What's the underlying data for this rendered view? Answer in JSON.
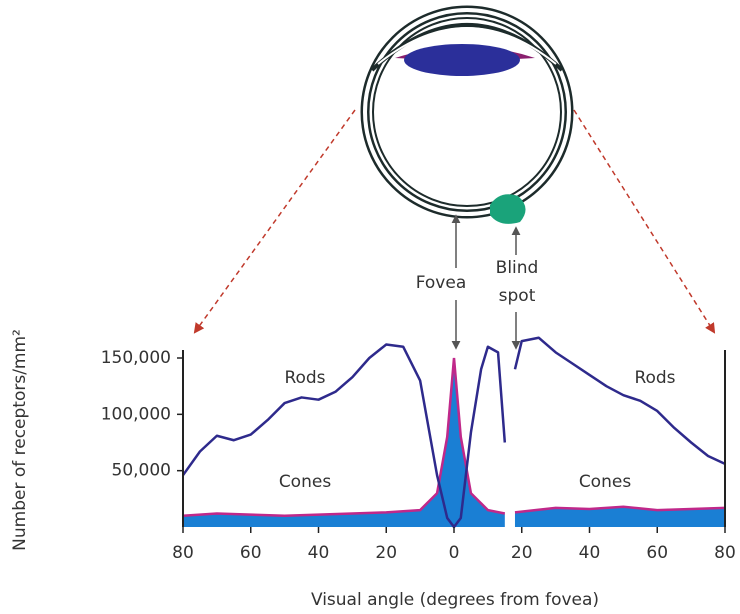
{
  "chart_data": {
    "type": "line",
    "xlabel": "Visual angle (degrees from fovea)",
    "ylabel": "Number of receptors/mm²",
    "xlim": [
      -80,
      80
    ],
    "ylim": [
      0,
      150000
    ],
    "xticks": [
      {
        "value": -80,
        "label": "80"
      },
      {
        "value": -60,
        "label": "60"
      },
      {
        "value": -40,
        "label": "40"
      },
      {
        "value": -20,
        "label": "20"
      },
      0,
      20,
      40,
      60,
      80
    ],
    "yticks": [
      {
        "value": 50000,
        "label": "50,000"
      },
      {
        "value": 100000,
        "label": "100,000"
      },
      {
        "value": 150000,
        "label": "150,000"
      }
    ],
    "series": [
      {
        "name": "Rods",
        "style": "line",
        "color": "#2e2a8c",
        "x": [
          -80,
          -75,
          -70,
          -65,
          -60,
          -55,
          -50,
          -45,
          -40,
          -35,
          -30,
          -25,
          -20,
          -15,
          -10,
          -5,
          -2,
          0,
          2,
          5,
          8,
          10,
          13,
          15,
          17,
          18,
          20,
          25,
          30,
          35,
          40,
          45,
          50,
          55,
          60,
          65,
          70,
          75,
          80
        ],
        "values": [
          46000,
          67000,
          81000,
          77000,
          82000,
          95000,
          110000,
          115000,
          113000,
          120000,
          133000,
          150000,
          162000,
          160000,
          130000,
          46000,
          8000,
          0,
          8000,
          84000,
          140000,
          160000,
          155000,
          75000,
          null,
          140000,
          165000,
          168000,
          155000,
          145000,
          135000,
          125000,
          117000,
          112000,
          103000,
          88000,
          75000,
          63000,
          56000
        ]
      },
      {
        "name": "Cones",
        "style": "area",
        "color": "#1a7fd4",
        "line_color": "#c0288a",
        "x": [
          -80,
          -70,
          -60,
          -50,
          -40,
          -30,
          -20,
          -10,
          -5,
          -2,
          0,
          2,
          5,
          10,
          15,
          17,
          18,
          30,
          40,
          50,
          60,
          70,
          80
        ],
        "values": [
          10000,
          12000,
          11000,
          10000,
          11000,
          12000,
          13000,
          15000,
          30000,
          80000,
          150000,
          80000,
          30000,
          15000,
          12000,
          null,
          13000,
          17000,
          16000,
          18000,
          15000,
          16000,
          17000
        ]
      }
    ],
    "annotations": [
      "Rods",
      "Rods",
      "Cones",
      "Cones",
      "Fovea",
      "Blind",
      "spot"
    ]
  }
}
